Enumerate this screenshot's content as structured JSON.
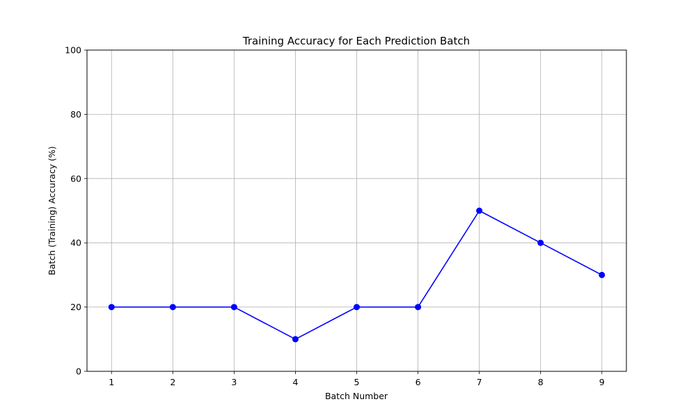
{
  "chart_data": {
    "type": "line",
    "title": "Training Accuracy for Each Prediction Batch",
    "xlabel": "Batch Number",
    "ylabel": "Batch (Training) Accuracy (%)",
    "x": [
      1,
      2,
      3,
      4,
      5,
      6,
      7,
      8,
      9
    ],
    "x_ticks": [
      "1",
      "2",
      "3",
      "4",
      "5",
      "6",
      "7",
      "8",
      "9"
    ],
    "y_ticks": [
      "0",
      "20",
      "40",
      "60",
      "80",
      "100"
    ],
    "xlim": [
      0.6,
      9.4
    ],
    "ylim": [
      0,
      100
    ],
    "grid": true,
    "series": [
      {
        "values": [
          20,
          20,
          20,
          10,
          20,
          20,
          50,
          40,
          30
        ],
        "color": "#0000ff",
        "marker": "circle"
      }
    ]
  }
}
